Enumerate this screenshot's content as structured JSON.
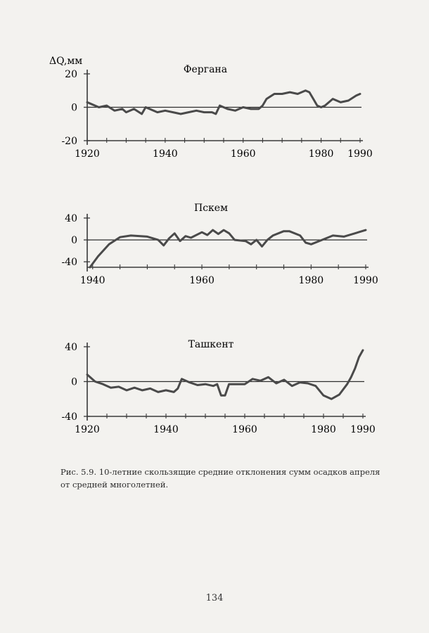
{
  "page": {
    "caption": "Рис. 5.9. 10-летние скользящие средние отклонения сумм осадков апреля от средней многолетней.",
    "page_number": "134"
  },
  "chart_data": [
    {
      "type": "line",
      "title": "Фергана",
      "ylabel": "ΔQ,мм",
      "xlim": [
        1920,
        1990
      ],
      "ylim": [
        -20,
        20
      ],
      "yticks": [
        20,
        0,
        -20
      ],
      "xticks": [
        1920,
        1940,
        1960,
        1980,
        1990
      ],
      "baseline": 0,
      "series": [
        {
          "name": "Фергана",
          "x": [
            1920,
            1923,
            1925,
            1927,
            1929,
            1930,
            1932,
            1934,
            1935,
            1936,
            1938,
            1940,
            1942,
            1944,
            1946,
            1948,
            1950,
            1952,
            1953,
            1954,
            1956,
            1958,
            1960,
            1962,
            1964,
            1965,
            1966,
            1968,
            1970,
            1972,
            1974,
            1976,
            1977,
            1978,
            1979,
            1980,
            1981,
            1983,
            1985,
            1987,
            1989,
            1990
          ],
          "y": [
            3,
            0,
            1,
            -2,
            -1,
            -3,
            -1,
            -4,
            0,
            -1,
            -3,
            -2,
            -3,
            -4,
            -3,
            -2,
            -3,
            -3,
            -4,
            1,
            -1,
            -2,
            0,
            -1,
            -1,
            1,
            5,
            8,
            8,
            9,
            8,
            10,
            9,
            5,
            1,
            0,
            1,
            5,
            3,
            4,
            7,
            8
          ]
        }
      ]
    },
    {
      "type": "line",
      "title": "Пскем",
      "xlim": [
        1939,
        1990
      ],
      "ylim": [
        -50,
        40
      ],
      "yticks": [
        40,
        0,
        -40
      ],
      "xticks": [
        1940,
        1960,
        1980,
        1990
      ],
      "baseline": 0,
      "series": [
        {
          "name": "Пскем",
          "x": [
            1939.5,
            1941,
            1943,
            1945,
            1947,
            1950,
            1952,
            1953,
            1954,
            1955,
            1956,
            1957,
            1958,
            1960,
            1961,
            1962,
            1963,
            1964,
            1965,
            1966,
            1968,
            1969,
            1970,
            1971,
            1972,
            1973,
            1975,
            1976,
            1978,
            1979,
            1980,
            1982,
            1984,
            1986,
            1988,
            1990
          ],
          "y": [
            -50,
            -30,
            -8,
            5,
            8,
            6,
            0,
            -10,
            3,
            12,
            -2,
            7,
            4,
            14,
            9,
            18,
            11,
            18,
            12,
            0,
            -2,
            -8,
            0,
            -12,
            0,
            8,
            16,
            16,
            8,
            -5,
            -8,
            0,
            8,
            6,
            12,
            18
          ]
        }
      ]
    },
    {
      "type": "line",
      "title": "Ташкент",
      "xlim": [
        1920,
        1990
      ],
      "ylim": [
        -40,
        40
      ],
      "yticks": [
        40,
        0,
        -40
      ],
      "xticks": [
        1920,
        1940,
        1960,
        1980,
        1990
      ],
      "baseline": 0,
      "series": [
        {
          "name": "Ташкент",
          "x": [
            1920,
            1922,
            1924,
            1926,
            1928,
            1930,
            1932,
            1934,
            1936,
            1938,
            1940,
            1942,
            1943,
            1944,
            1946,
            1948,
            1950,
            1952,
            1953,
            1954,
            1955,
            1956,
            1958,
            1960,
            1962,
            1964,
            1966,
            1968,
            1970,
            1972,
            1974,
            1976,
            1978,
            1980,
            1982,
            1984,
            1986,
            1987,
            1988,
            1989,
            1990
          ],
          "y": [
            8,
            0,
            -3,
            -7,
            -6,
            -10,
            -7,
            -10,
            -8,
            -12,
            -10,
            -12,
            -8,
            3,
            -1,
            -4,
            -3,
            -5,
            -3,
            -16,
            -16,
            -3,
            -3,
            -3,
            3,
            1,
            5,
            -2,
            2,
            -5,
            -1,
            -2,
            -5,
            -16,
            -20,
            -15,
            -3,
            5,
            15,
            28,
            36
          ]
        }
      ]
    }
  ]
}
